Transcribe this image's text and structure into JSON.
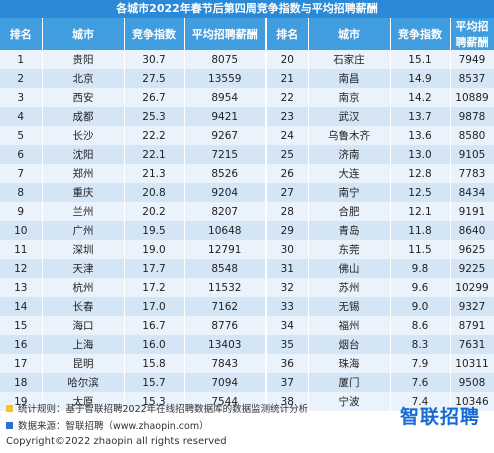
{
  "title": "各城市2022年春节后第四周竞争指数与平均招聘薪酬",
  "headers": [
    "排名",
    "城市",
    "竞争指数",
    "平均招聘薪酬",
    "排名",
    "城市",
    "竞争指数",
    "平均招聘薪酬"
  ],
  "rows": [
    {
      "left": [
        "1",
        "贵阳",
        "30.7",
        "8075"
      ],
      "right": [
        "20",
        "石家庄",
        "15.1",
        "7949"
      ]
    },
    {
      "left": [
        "2",
        "北京",
        "27.5",
        "13559"
      ],
      "right": [
        "21",
        "南昌",
        "14.9",
        "8537"
      ]
    },
    {
      "left": [
        "3",
        "西安",
        "26.7",
        "8954"
      ],
      "right": [
        "22",
        "南京",
        "14.2",
        "10889"
      ]
    },
    {
      "left": [
        "4",
        "成都",
        "25.3",
        "9421"
      ],
      "right": [
        "23",
        "武汉",
        "13.7",
        "9878"
      ]
    },
    {
      "left": [
        "5",
        "长沙",
        "22.2",
        "9267"
      ],
      "right": [
        "24",
        "乌鲁木齐",
        "13.6",
        "8580"
      ]
    },
    {
      "left": [
        "6",
        "沈阳",
        "22.1",
        "7215"
      ],
      "right": [
        "25",
        "济南",
        "13.0",
        "9105"
      ]
    },
    {
      "left": [
        "7",
        "郑州",
        "21.3",
        "8526"
      ],
      "right": [
        "26",
        "大连",
        "12.8",
        "7783"
      ]
    },
    {
      "left": [
        "8",
        "重庆",
        "20.8",
        "9204"
      ],
      "right": [
        "27",
        "南宁",
        "12.5",
        "8434"
      ]
    },
    {
      "left": [
        "9",
        "兰州",
        "20.2",
        "8207"
      ],
      "right": [
        "28",
        "合肥",
        "12.1",
        "9191"
      ]
    },
    {
      "left": [
        "10",
        "广州",
        "19.5",
        "10648"
      ],
      "right": [
        "29",
        "青岛",
        "11.8",
        "8640"
      ]
    },
    {
      "left": [
        "11",
        "深圳",
        "19.0",
        "12791"
      ],
      "right": [
        "30",
        "东莞",
        "11.5",
        "9625"
      ]
    },
    {
      "left": [
        "12",
        "天津",
        "17.7",
        "8548"
      ],
      "right": [
        "31",
        "佛山",
        "9.8",
        "9225"
      ]
    },
    {
      "left": [
        "13",
        "杭州",
        "17.2",
        "11532"
      ],
      "right": [
        "32",
        "苏州",
        "9.6",
        "10299"
      ]
    },
    {
      "left": [
        "14",
        "长春",
        "17.0",
        "7162"
      ],
      "right": [
        "33",
        "无锡",
        "9.0",
        "9327"
      ]
    },
    {
      "left": [
        "15",
        "海口",
        "16.7",
        "8776"
      ],
      "right": [
        "34",
        "福州",
        "8.6",
        "8791"
      ]
    },
    {
      "left": [
        "16",
        "上海",
        "16.0",
        "13403"
      ],
      "right": [
        "35",
        "烟台",
        "8.3",
        "7631"
      ]
    },
    {
      "left": [
        "17",
        "昆明",
        "15.8",
        "7843"
      ],
      "right": [
        "36",
        "珠海",
        "7.9",
        "10311"
      ]
    },
    {
      "left": [
        "18",
        "哈尔滨",
        "15.7",
        "7094"
      ],
      "right": [
        "37",
        "厦门",
        "7.6",
        "9508"
      ]
    },
    {
      "left": [
        "19",
        "太原",
        "15.3",
        "7544"
      ],
      "right": [
        "38",
        "宁波",
        "7.4",
        "10346"
      ]
    }
  ],
  "footer": {
    "stat_rule": "统计规则：基于智联招聘2022年在线招聘数据库的数据监测统计分析",
    "source": "数据来源：智联招聘（www.zhaopin.com）",
    "copyright": "Copyright©2022 zhaopin all rights reserved",
    "logo_text": "智联招聘",
    "colors": {
      "header_bg": "#3f9de0",
      "title_bg": "#2a8ad8",
      "row_odd": "#eaf3fb",
      "row_even": "#d4e6f5",
      "logo": "#1769d6"
    }
  }
}
